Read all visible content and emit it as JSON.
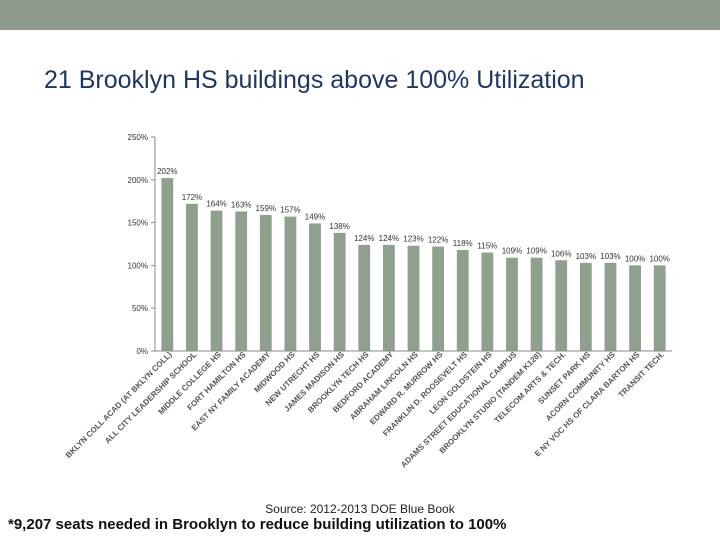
{
  "slide": {
    "title": "21 Brooklyn HS buildings above 100% Utilization",
    "source": "Source: 2012-2013 DOE Blue Book",
    "footnote": "*9,207 seats needed in Brooklyn to reduce building utilization to 100%"
  },
  "chart_data": {
    "type": "bar",
    "categories": [
      "BKLYN COLL ACAD (AT BKLYN COLL)",
      "ALL CITY LEADERSHIP SCHOOL",
      "MIDDLE COLLEGE HS",
      "FORT HAMILTON HS",
      "EAST NY FAMILY ACADEMY",
      "MIDWOOD HS",
      "NEW UTRECHT HS",
      "JAMES MADISON HS",
      "BROOKLYN TECH HS",
      "BEDFORD ACADEMY",
      "ABRAHAM LINCOLN HS",
      "EDWARD R. MURROW HS",
      "FRANKLIN D. ROOSEVELT HS",
      "LEON GOLDSTEIN HS",
      "ADAMS STREET EDUCATIONAL CAMPUS",
      "BROOKLYN STUDIO (TANDEM K128)",
      "TELECOM ARTS & TECH.",
      "SUNSET PARK HS",
      "ACORN COMMUNITY HS",
      "E NY VOC HS OF CLARA BARTON HS",
      "TRANSIT TECH."
    ],
    "values": [
      202,
      172,
      164,
      163,
      159,
      157,
      149,
      138,
      124,
      124,
      123,
      122,
      118,
      115,
      109,
      109,
      106,
      103,
      103,
      100,
      100
    ],
    "data_labels": [
      "202%",
      "172%",
      "164%",
      "163%",
      "159%",
      "157%",
      "149%",
      "138%",
      "124%",
      "124%",
      "123%",
      "122%",
      "118%",
      "115%",
      "109%",
      "109%",
      "106%",
      "103%",
      "103%",
      "100%",
      "100%"
    ],
    "yticks": [
      {
        "value": 0,
        "label": "0%"
      },
      {
        "value": 50,
        "label": "50%"
      },
      {
        "value": 100,
        "label": "100%"
      },
      {
        "value": 150,
        "label": "150%"
      },
      {
        "value": 200,
        "label": "200%"
      },
      {
        "value": 250,
        "label": "250%"
      }
    ],
    "ylim": [
      0,
      250
    ],
    "grid": false,
    "legend": "none",
    "bar_color": "#8fa08f",
    "title": "",
    "xlabel": "",
    "ylabel": ""
  }
}
